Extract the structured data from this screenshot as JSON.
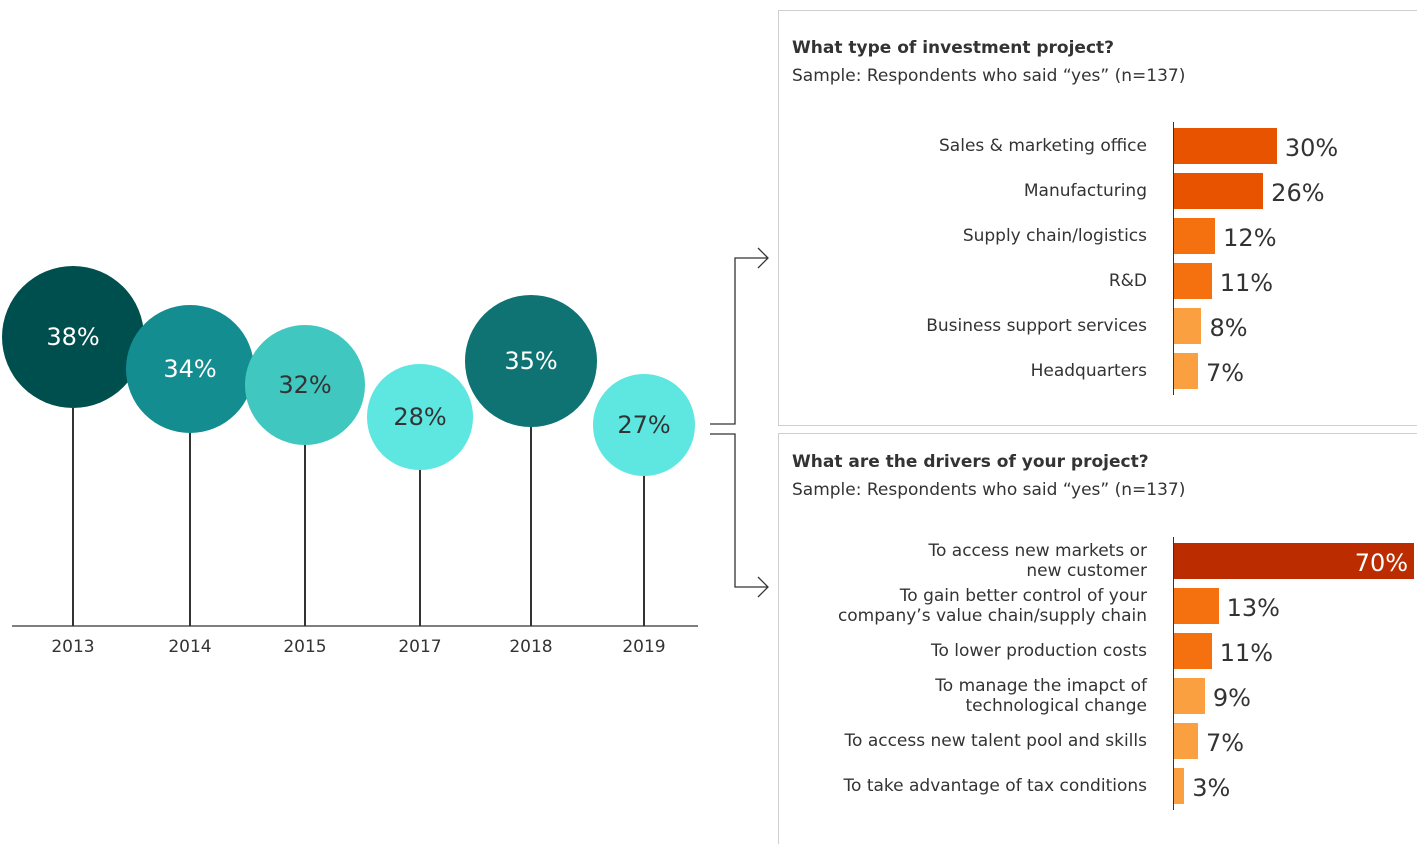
{
  "chart_data": [
    {
      "type": "bubble",
      "categories": [
        "2013",
        "2014",
        "2015",
        "2017",
        "2018",
        "2019"
      ],
      "values": [
        38,
        34,
        32,
        28,
        35,
        27
      ],
      "value_labels": [
        "38%",
        "34%",
        "32%",
        "28%",
        "35%",
        "27%"
      ],
      "colors": [
        "#004f4f",
        "#138d90",
        "#40c8c0",
        "#5ee6e0",
        "#0f7373",
        "#5ee6e0"
      ]
    },
    {
      "type": "bar",
      "title": "What type of investment project?",
      "subtitle": "Sample: Respondents who said “yes” (n=137)",
      "categories": [
        "Sales & marketing office",
        "Manufacturing",
        "Supply chain/logistics",
        "R&D",
        "Business support services",
        "Headquarters"
      ],
      "values": [
        30,
        26,
        12,
        11,
        8,
        7
      ],
      "value_labels": [
        "30%",
        "26%",
        "12%",
        "11%",
        "8%",
        "7%"
      ],
      "colors": [
        "#e85300",
        "#e85300",
        "#f5700f",
        "#f5700f",
        "#fba040",
        "#fba040"
      ]
    },
    {
      "type": "bar",
      "title": "What are the drivers of your project?",
      "subtitle": "Sample: Respondents who said “yes” (n=137)",
      "categories": [
        "To access new markets or\nnew customer",
        "To gain better control of your\ncompany’s value chain/supply chain",
        "To lower production costs",
        "To manage the imapct of\ntechnological change",
        "To access new talent pool and skills",
        "To take advantage of tax conditions"
      ],
      "values": [
        70,
        13,
        11,
        9,
        7,
        3
      ],
      "value_labels": [
        "70%",
        "13%",
        "11%",
        "9%",
        "7%",
        "3%"
      ],
      "colors": [
        "#bb2d00",
        "#f5700f",
        "#f5700f",
        "#fba040",
        "#fba040",
        "#fba040"
      ]
    }
  ]
}
